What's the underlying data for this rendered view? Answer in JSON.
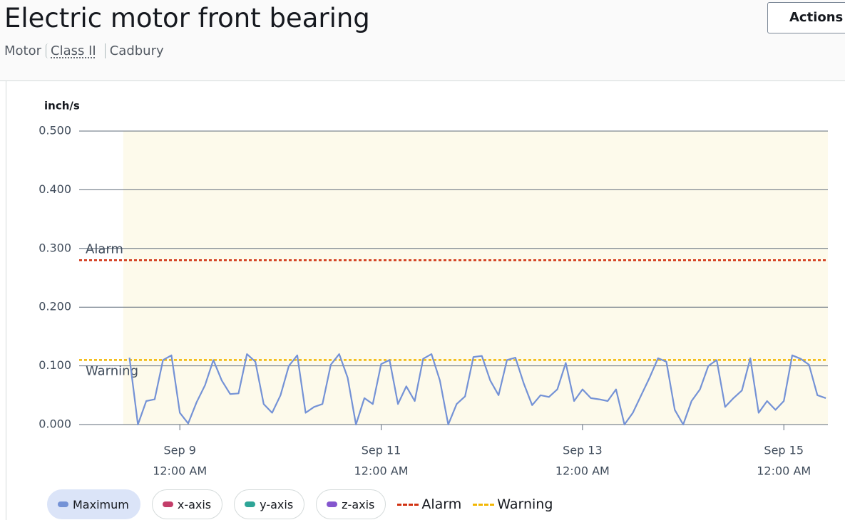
{
  "header": {
    "title": "Electric motor front bearing",
    "breadcrumbs": [
      "Motor",
      "Class II",
      "Cadbury"
    ],
    "action": "Actions"
  },
  "chart_data": {
    "type": "line",
    "y_label": "inch/s",
    "xlim": [
      "Sep 8 12:00 AM",
      "Sep 15 10:30 AM"
    ],
    "xticks": [
      {
        "value": "Sep 9 12:00 AM",
        "label": [
          "Sep 9",
          "12:00 AM"
        ]
      },
      {
        "value": "Sep 11 12:00 AM",
        "label": [
          "Sep 11",
          "12:00 AM"
        ]
      },
      {
        "value": "Sep 13 12:00 AM",
        "label": [
          "Sep 13",
          "12:00 AM"
        ]
      },
      {
        "value": "Sep 15 12:00 AM",
        "label": [
          "Sep 15",
          "12:00 AM"
        ]
      }
    ],
    "ylim": [
      0,
      0.5
    ],
    "yticks": [
      {
        "value": 0,
        "label": "0.000"
      },
      {
        "value": 0.1,
        "label": "0.100"
      },
      {
        "value": 0.2,
        "label": "0.200"
      },
      {
        "value": 0.3,
        "label": "0.300"
      },
      {
        "value": 0.4,
        "label": "0.400"
      },
      {
        "value": 0.5,
        "label": "0.500"
      }
    ],
    "grid": true,
    "shaded_range": [
      "Sep 8 10:30 AM",
      "Sep 15 10:30 AM"
    ],
    "x": [
      "Sep 8 12:00 PM",
      "Sep 8 2:00 PM",
      "Sep 8 4:00 PM",
      "Sep 8 6:00 PM",
      "Sep 8 8:00 PM",
      "Sep 8 10:00 PM",
      "Sep 9 12:00 AM",
      "Sep 9 2:00 AM",
      "Sep 9 4:00 AM",
      "Sep 9 6:00 AM",
      "Sep 9 8:00 AM",
      "Sep 9 10:00 AM",
      "Sep 9 12:00 PM",
      "Sep 9 2:00 PM",
      "Sep 9 4:00 PM",
      "Sep 9 6:00 PM",
      "Sep 9 8:00 PM",
      "Sep 9 10:00 PM",
      "Sep 10 12:00 AM",
      "Sep 10 2:00 AM",
      "Sep 10 4:00 AM",
      "Sep 10 6:00 AM",
      "Sep 10 8:00 AM",
      "Sep 10 10:00 AM",
      "Sep 10 12:00 PM",
      "Sep 10 2:00 PM",
      "Sep 10 4:00 PM",
      "Sep 10 6:00 PM",
      "Sep 10 8:00 PM",
      "Sep 10 10:00 PM",
      "Sep 11 12:00 AM",
      "Sep 11 2:00 AM",
      "Sep 11 4:00 AM",
      "Sep 11 6:00 AM",
      "Sep 11 8:00 AM",
      "Sep 11 10:00 AM",
      "Sep 11 12:00 PM",
      "Sep 11 2:00 PM",
      "Sep 11 4:00 PM",
      "Sep 11 6:00 PM",
      "Sep 11 8:00 PM",
      "Sep 11 10:00 PM",
      "Sep 12 12:00 AM",
      "Sep 12 2:00 AM",
      "Sep 12 4:00 AM",
      "Sep 12 6:00 AM",
      "Sep 12 8:00 AM",
      "Sep 12 10:00 AM",
      "Sep 12 12:00 PM",
      "Sep 12 2:00 PM",
      "Sep 12 4:00 PM",
      "Sep 12 6:00 PM",
      "Sep 12 8:00 PM",
      "Sep 12 10:00 PM",
      "Sep 13 12:00 AM",
      "Sep 13 2:00 AM",
      "Sep 13 4:00 AM",
      "Sep 13 6:00 AM",
      "Sep 13 8:00 AM",
      "Sep 13 10:00 AM",
      "Sep 13 12:00 PM",
      "Sep 13 2:00 PM",
      "Sep 13 4:00 PM",
      "Sep 13 6:00 PM",
      "Sep 13 8:00 PM",
      "Sep 13 10:00 PM",
      "Sep 14 12:00 AM",
      "Sep 14 2:00 AM",
      "Sep 14 4:00 AM",
      "Sep 14 6:00 AM",
      "Sep 14 8:00 AM",
      "Sep 14 10:00 AM",
      "Sep 14 12:00 PM",
      "Sep 14 2:00 PM",
      "Sep 14 4:00 PM",
      "Sep 14 6:00 PM",
      "Sep 14 8:00 PM",
      "Sep 14 10:00 PM",
      "Sep 15 12:00 AM",
      "Sep 15 2:00 AM",
      "Sep 15 4:00 AM",
      "Sep 15 6:00 AM",
      "Sep 15 8:00 AM",
      "Sep 15 10:00 AM"
    ],
    "series": [
      {
        "name": "Maximum",
        "color": "#7492d6",
        "values": [
          0.114,
          0,
          0.04,
          0.043,
          0.11,
          0.118,
          0.02,
          0.002,
          0.038,
          0.067,
          0.11,
          0.075,
          0.052,
          0.053,
          0.12,
          0.107,
          0.035,
          0.02,
          0.05,
          0.1,
          0.118,
          0.02,
          0.03,
          0.035,
          0.102,
          0.12,
          0.08,
          0,
          0.045,
          0.035,
          0.103,
          0.11,
          0.035,
          0.065,
          0.04,
          0.112,
          0.12,
          0.075,
          0,
          0.035,
          0.048,
          0.115,
          0.117,
          0.075,
          0.05,
          0.11,
          0.114,
          0.07,
          0.033,
          0.05,
          0.047,
          0.06,
          0.105,
          0.04,
          0.06,
          0.045,
          0.043,
          0.04,
          0.06,
          0,
          0.02,
          0.05,
          0.08,
          0.113,
          0.107,
          0.025,
          0,
          0.04,
          0.06,
          0.1,
          0.11,
          0.03,
          0.045,
          0.058,
          0.113,
          0.02,
          0.04,
          0.025,
          0.04,
          0.118,
          0.112,
          0.102,
          0.05,
          0.045
        ]
      }
    ],
    "legend_toggles": [
      {
        "name": "x-axis",
        "color": "#c33d69"
      },
      {
        "name": "y-axis",
        "color": "#2ea597"
      },
      {
        "name": "z-axis",
        "color": "#8456ce"
      }
    ],
    "thresholds": [
      {
        "name": "Alarm",
        "value": 0.28,
        "color": "#d13212"
      },
      {
        "name": "Warning",
        "value": 0.11,
        "color": "#f2b705"
      }
    ]
  }
}
